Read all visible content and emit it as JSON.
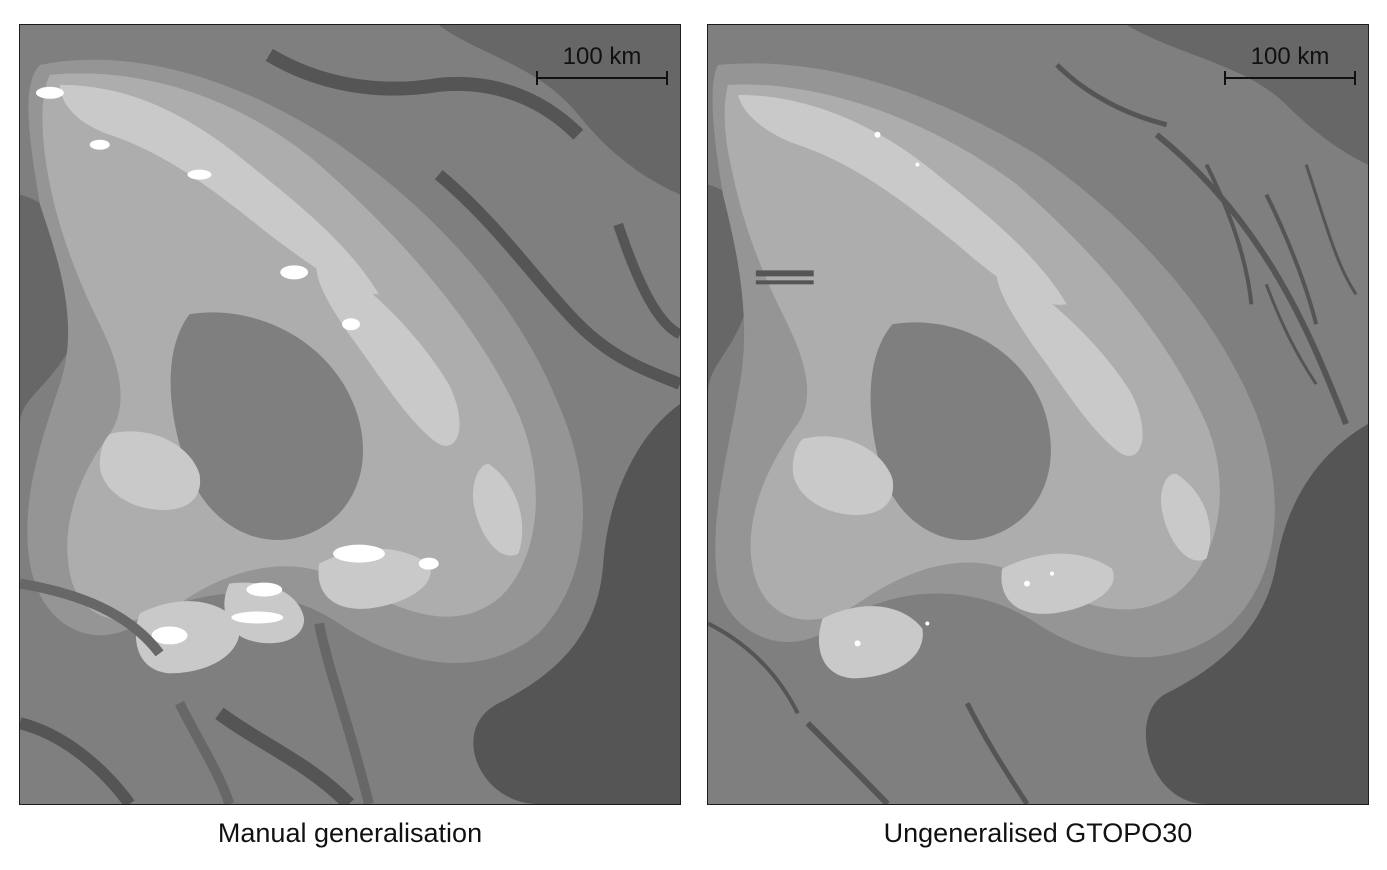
{
  "panels": [
    {
      "caption": "Manual generalisation",
      "scale_label": "100 km"
    },
    {
      "caption": "Ungeneralised GTOPO30",
      "scale_label": "100 km"
    }
  ],
  "colors": {
    "lowland": "#555555",
    "valley": "#676767",
    "low_hills": "#7f7f7f",
    "mid_hills": "#959595",
    "upland": "#adadad",
    "high": "#c9c9c9",
    "summit": "#ffffff",
    "frame": "#1c1c1c"
  }
}
